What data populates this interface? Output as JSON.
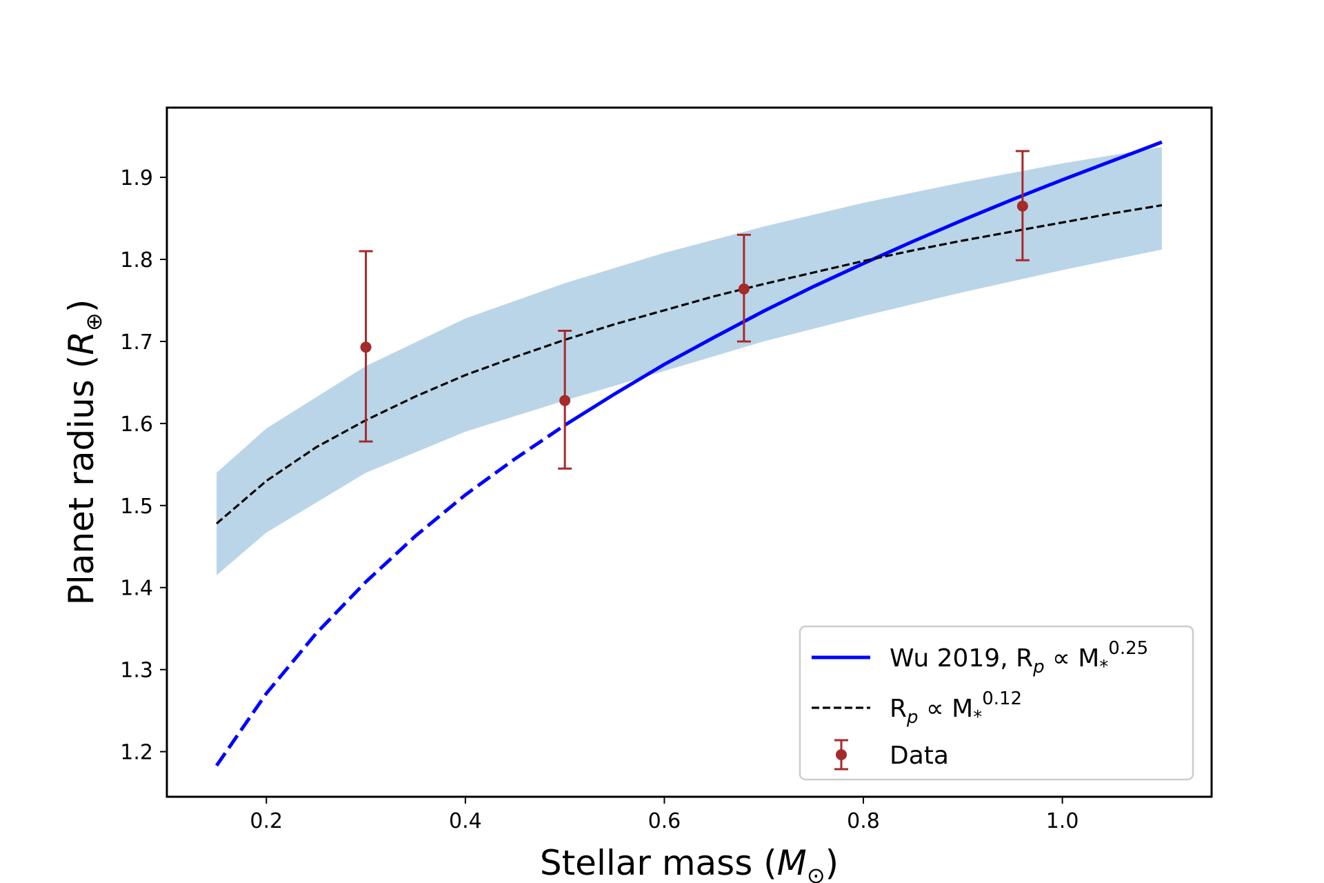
{
  "chart_data": {
    "type": "line",
    "title": "",
    "xlabel": "Stellar mass",
    "xlabel_unit": "M",
    "xlabel_unit_sub": "⊙",
    "ylabel": "Planet radius",
    "ylabel_unit": "R",
    "ylabel_unit_sub": "⊕",
    "xlim": [
      0.1,
      1.15
    ],
    "ylim": [
      1.145,
      1.985
    ],
    "xticks": [
      0.2,
      0.4,
      0.6,
      0.8,
      1.0
    ],
    "xtick_labels": [
      "0.2",
      "0.4",
      "0.6",
      "0.8",
      "1.0"
    ],
    "yticks": [
      1.2,
      1.3,
      1.4,
      1.5,
      1.6,
      1.7,
      1.8,
      1.9
    ],
    "ytick_labels": [
      "1.2",
      "1.3",
      "1.4",
      "1.5",
      "1.6",
      "1.7",
      "1.8",
      "1.9"
    ],
    "grid": false,
    "legend_position": "lower-right",
    "series": [
      {
        "name": "Wu 2019, R_p ∝ M_*^0.25",
        "kind": "line",
        "color": "#0000ff",
        "style": "solid; dashed below 0.5",
        "x": [
          0.15,
          0.2,
          0.25,
          0.3,
          0.35,
          0.4,
          0.45,
          0.5,
          0.55,
          0.6,
          0.65,
          0.7,
          0.75,
          0.8,
          0.85,
          0.9,
          0.95,
          1.0,
          1.05,
          1.1
        ],
        "y": [
          1.183,
          1.271,
          1.344,
          1.407,
          1.463,
          1.513,
          1.557,
          1.598,
          1.636,
          1.672,
          1.705,
          1.737,
          1.767,
          1.795,
          1.822,
          1.848,
          1.873,
          1.897,
          1.92,
          1.943
        ]
      },
      {
        "name": "R_p ∝ M_*^0.12",
        "kind": "line",
        "color": "#000000",
        "style": "dashed",
        "x": [
          0.15,
          0.2,
          0.25,
          0.3,
          0.35,
          0.4,
          0.45,
          0.5,
          0.55,
          0.6,
          0.65,
          0.7,
          0.75,
          0.8,
          0.85,
          0.9,
          0.95,
          1.0,
          1.05,
          1.1
        ],
        "y": [
          1.478,
          1.53,
          1.571,
          1.604,
          1.633,
          1.659,
          1.681,
          1.702,
          1.721,
          1.738,
          1.755,
          1.77,
          1.784,
          1.798,
          1.811,
          1.823,
          1.834,
          1.845,
          1.856,
          1.866
        ]
      },
      {
        "name": "uncertainty band",
        "kind": "band",
        "color": "#bad5e8",
        "x": [
          0.15,
          0.2,
          0.3,
          0.4,
          0.5,
          0.6,
          0.7,
          0.8,
          0.9,
          1.0,
          1.1
        ],
        "lower": [
          1.415,
          1.467,
          1.54,
          1.59,
          1.628,
          1.664,
          1.7,
          1.731,
          1.76,
          1.787,
          1.812
        ],
        "upper": [
          1.54,
          1.594,
          1.67,
          1.728,
          1.771,
          1.808,
          1.84,
          1.869,
          1.894,
          1.917,
          1.937
        ]
      },
      {
        "name": "Data",
        "kind": "errorbar",
        "color": "#a52a2a",
        "x": [
          0.3,
          0.5,
          0.68,
          0.96
        ],
        "y": [
          1.693,
          1.628,
          1.764,
          1.865
        ],
        "yerr_low": [
          0.115,
          0.083,
          0.064,
          0.066
        ],
        "yerr_high": [
          0.117,
          0.085,
          0.066,
          0.067
        ]
      }
    ],
    "legend": {
      "entries": [
        {
          "key": "wu",
          "text": "Wu 2019, R",
          "sub": "p",
          "mid": " ∝ M",
          "sub2": "*",
          "sup": "0.25"
        },
        {
          "key": "fit",
          "text": "R",
          "sub": "p",
          "mid": " ∝ M",
          "sub2": "*",
          "sup": "0.12"
        },
        {
          "key": "data",
          "text": "Data"
        }
      ]
    }
  }
}
